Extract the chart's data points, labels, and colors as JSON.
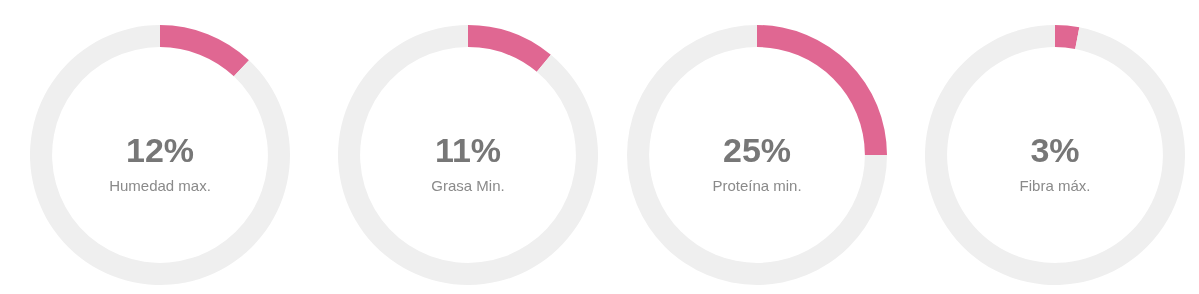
{
  "chart_data": [
    {
      "type": "donut",
      "categories": [
        "Humedad max.",
        null
      ],
      "values": [
        12,
        88
      ],
      "colors": [
        "#e06792",
        "#efefef"
      ],
      "value_labels": [
        "12%",
        null
      ]
    },
    {
      "type": "donut",
      "categories": [
        "Grasa Min.",
        null
      ],
      "values": [
        11,
        89
      ],
      "colors": [
        "#e06792",
        "#efefef"
      ],
      "value_labels": [
        "11%",
        null
      ]
    },
    {
      "type": "donut",
      "categories": [
        "Proteína min.",
        null
      ],
      "values": [
        25,
        75
      ],
      "colors": [
        "#e06792",
        "#efefef"
      ],
      "value_labels": [
        "25%",
        null
      ]
    },
    {
      "type": "donut",
      "categories": [
        "Fibra máx.",
        null
      ],
      "values": [
        3,
        97
      ],
      "colors": [
        "#e06792",
        "#efefef"
      ],
      "value_labels": [
        "3%",
        null
      ]
    }
  ]
}
